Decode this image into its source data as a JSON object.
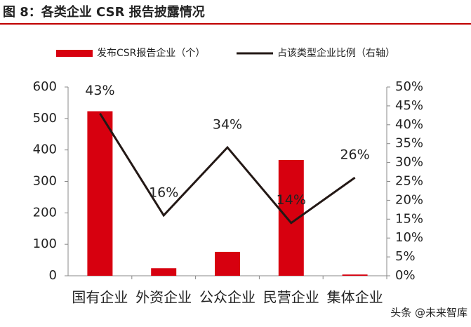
{
  "chart_data": {
    "type": "combo",
    "title": "图 8：各类企业 CSR 报告披露情况",
    "categories": [
      "国有企业",
      "外资企业",
      "公众企业",
      "民营企业",
      "集体企业"
    ],
    "series": [
      {
        "name": "发布CSR报告企业（个）",
        "type": "bar",
        "color": "#d7000f",
        "values": [
          523,
          24,
          76,
          368,
          4
        ]
      },
      {
        "name": "占该类型企业比例（右轴）",
        "type": "line",
        "axis": "y2",
        "color": "#231815",
        "values": [
          43,
          16,
          34,
          14,
          26
        ],
        "value_labels": [
          "43%",
          "16%",
          "34%",
          "14%",
          "26%"
        ]
      }
    ],
    "ylim": [
      0,
      600
    ],
    "yticks": [
      0,
      100,
      200,
      300,
      400,
      500,
      600
    ],
    "y2lim": [
      0,
      50
    ],
    "y2ticks": [
      {
        "value": 0,
        "label": "0%"
      },
      {
        "value": 5,
        "label": "5%"
      },
      {
        "value": 10,
        "label": "10%"
      },
      {
        "value": 15,
        "label": "15%"
      },
      {
        "value": 20,
        "label": "20%"
      },
      {
        "value": 25,
        "label": "25%"
      },
      {
        "value": 30,
        "label": "30%"
      },
      {
        "value": 35,
        "label": "35%"
      },
      {
        "value": 40,
        "label": "40%"
      },
      {
        "value": 45,
        "label": "45%"
      },
      {
        "value": 50,
        "label": "50%"
      }
    ],
    "grid": false,
    "watermark": "头条 @未来智库"
  }
}
